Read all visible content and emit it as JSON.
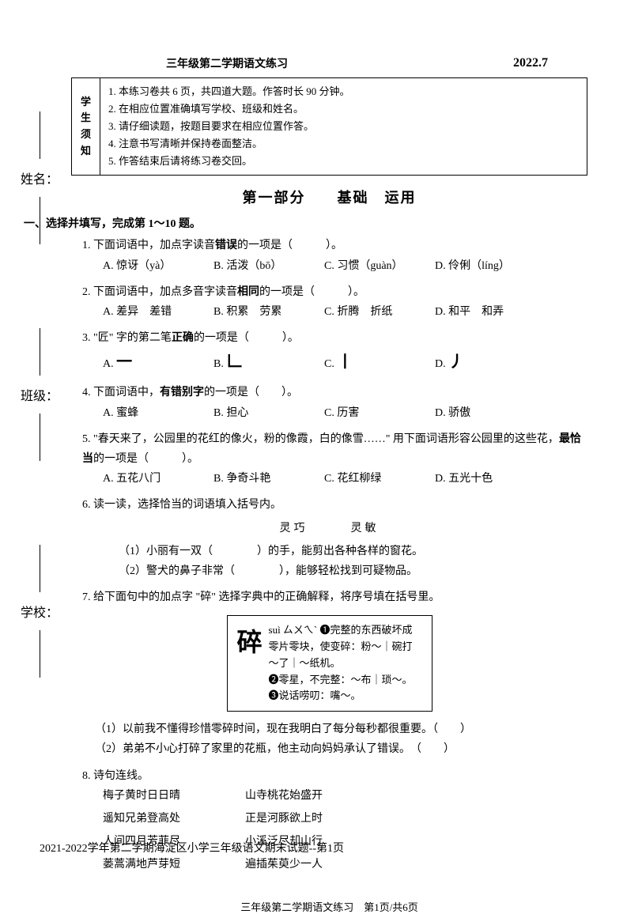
{
  "side": {
    "name_label": "姓名：",
    "class_label": "班级：",
    "school_label": "学校："
  },
  "header": {
    "title": "三年级第二学期语文练习",
    "date": "2022.7"
  },
  "notice": {
    "left": [
      "学",
      "生",
      "须",
      "知"
    ],
    "items": [
      "1.  本练习卷共 6 页，共四道大题。作答时长 90 分钟。",
      "2.  在相应位置准确填写学校、班级和姓名。",
      "3.  请仔细读题，按题目要求在相应位置作答。",
      "4.  注意书写清晰并保持卷面整洁。",
      "5.  作答结束后请将练习卷交回。"
    ]
  },
  "section_title": "第一部分　　基础　运用",
  "main_instruction": "一、选择并填写，完成第 1～10 题。",
  "q1": {
    "text": "1. 下面词语中，加点字读音",
    "bold": "错误",
    "text2": "的一项是（　　　）。",
    "opts": [
      "A. 惊讶（yà）",
      "B. 活泼（bō）",
      "C. 习惯（guàn）",
      "D. 伶俐（líng）"
    ]
  },
  "q2": {
    "text": "2. 下面词语中，加点多音字读音",
    "bold": "相同",
    "text2": "的一项是（　　　）。",
    "opts": [
      "A. 差异　差错",
      "B. 积累　劳累",
      "C. 折腾　折纸",
      "D. 和平　和弄"
    ]
  },
  "q3": {
    "text": "3. \"匠\" 字的第二笔",
    "bold": "正确",
    "text2": "的一项是（　　　）。",
    "opts": [
      "A. ",
      "B. ",
      "C. ",
      "D. "
    ],
    "strokes": [
      "一",
      "𠃊",
      "丨",
      "丿"
    ]
  },
  "q4": {
    "text": "4. 下面词语中，",
    "bold": "有错别字",
    "text2": "的一项是（　　）。",
    "opts": [
      "A. 蜜蜂",
      "B. 担心",
      "C. 历害",
      "D. 骄傲"
    ]
  },
  "q5": {
    "text": "5. \"春天来了，公园里的花红的像火，粉的像霞，白的像雪……\" 用下面词语形容公园里的这些花，",
    "bold": "最恰当",
    "text2": "的一项是（　　　）。",
    "opts": [
      "A. 五花八门",
      "B. 争奇斗艳",
      "C. 花红柳绿",
      "D. 五光十色"
    ]
  },
  "q6": {
    "text": "6. 读一读，选择恰当的词语填入括号内。",
    "words": "灵巧　　　灵敏",
    "sub1": "（1）小丽有一双（　　　　）的手，能剪出各种各样的窗花。",
    "sub2": "（2）警犬的鼻子非常（　　　　），能够轻松找到可疑物品。"
  },
  "q7": {
    "text": "7. 给下面句中的加点字 \"碎\" 选择字典中的正确解释，将序号填在括号里。",
    "dict_char": "碎",
    "dict_pinyin": "suì ㄙㄨㄟˋ",
    "dict_def1": "❶完整的东西破坏成零片零块，使变碎：粉～｜碗打～了｜～纸机。",
    "dict_def2": "❷零星，不完整：～布｜琐～。",
    "dict_def3": "❸说话唠叨：嘴～。",
    "sub1": "（1）以前我不懂得珍惜零碎时间，现在我明白了每分每秒都很重要。（　　）",
    "sub2": "（2）弟弟不小心打碎了家里的花瓶，他主动向妈妈承认了错误。　（　　）"
  },
  "q8": {
    "text": "8.   诗句连线。",
    "pairs": [
      {
        "left": "梅子黄时日日晴",
        "right": "山寺桃花始盛开"
      },
      {
        "left": "遥知兄弟登高处",
        "right": "正是河豚欲上时"
      },
      {
        "left": "人间四月芳菲尽",
        "right": "小溪泛尽却山行"
      },
      {
        "left": "蒌蒿满地芦芽短",
        "right": "遍插茱萸少一人"
      }
    ]
  },
  "page_footer": "三年级第二学期语文练习　第1页/共6页",
  "bottom_label": "2021-2022学年第二学期海淀区小学三年级语文期末试题--第1页"
}
